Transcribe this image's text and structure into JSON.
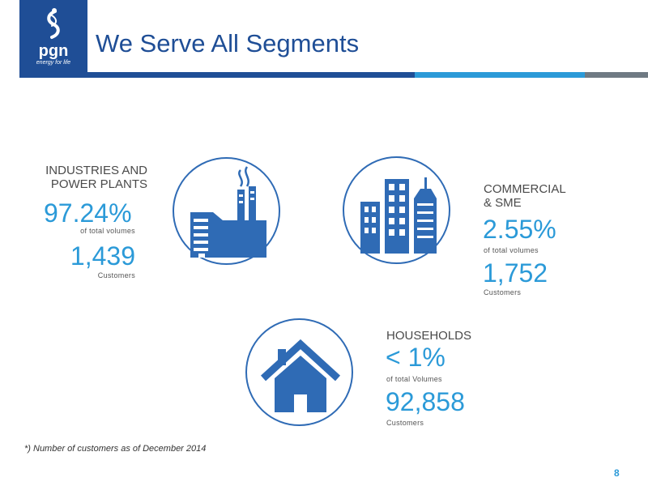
{
  "logo": {
    "name": "pgn",
    "tagline": "energy for life"
  },
  "header": {
    "title": "We Serve All Segments"
  },
  "segments": {
    "industries": {
      "label_line1": "INDUSTRIES AND",
      "label_line2": "POWER PLANTS",
      "percent": "97.24%",
      "percent_note": "of total volumes",
      "customers": "1,439",
      "customers_note": "Customers",
      "icon": "factory-icon"
    },
    "commercial": {
      "label_line1": "COMMERCIAL",
      "label_line2": "& SME",
      "percent": "2.55%",
      "percent_note": "of total volumes",
      "customers": "1,752",
      "customers_note": "Customers",
      "icon": "buildings-icon"
    },
    "households": {
      "label_line1": "HOUSEHOLDS",
      "percent": "< 1%",
      "percent_note": "of total Volumes",
      "customers": "92,858",
      "customers_note": "Customers",
      "icon": "house-icon"
    }
  },
  "footnote": "*) Number of customers as of December 2014",
  "page_number": "8",
  "colors": {
    "navy": "#1f4e96",
    "accent_blue": "#2b9ad8",
    "icon_blue": "#2f6bb5",
    "gray": "#6f7a83"
  }
}
